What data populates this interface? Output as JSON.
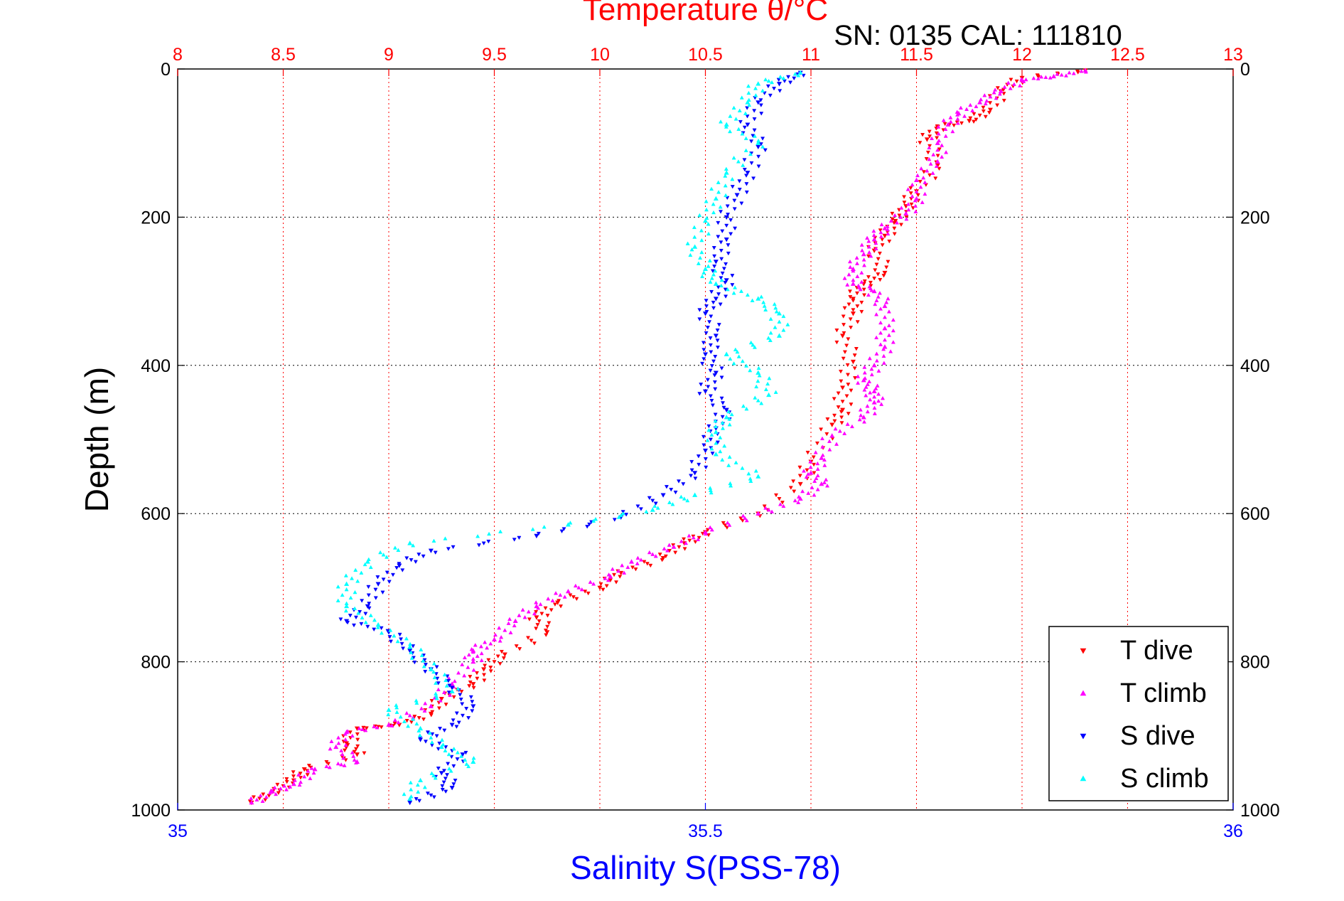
{
  "chart_data": {
    "type": "scatter",
    "title": "Temperature θ/°C",
    "subtitle": "SN: 0135  CAL: 111810",
    "xlabel": "Salinity S(PSS-78)",
    "ylabel": "Depth (m)",
    "grid": true,
    "legend_position": "bottom-right",
    "temperature_axis": {
      "position": "top",
      "color": "#ff0000",
      "range": [
        8,
        13
      ],
      "ticks": [
        8,
        8.5,
        9,
        9.5,
        10,
        10.5,
        11,
        11.5,
        12,
        12.5,
        13
      ],
      "tick_labels": [
        "8",
        "8.5",
        "9",
        "9.5",
        "10",
        "10.5",
        "11",
        "11.5",
        "12",
        "12.5",
        "13"
      ]
    },
    "salinity_axis": {
      "position": "bottom",
      "color": "#0000ff",
      "range": [
        35,
        36
      ],
      "ticks": [
        35,
        35.5,
        36
      ],
      "tick_labels": [
        "35",
        "35.5",
        "36"
      ]
    },
    "depth_axis": {
      "range": [
        0,
        1000
      ],
      "reversed": true,
      "ticks": [
        0,
        200,
        400,
        600,
        800,
        1000
      ],
      "tick_labels": [
        "0",
        "200",
        "400",
        "600",
        "800",
        "1000"
      ]
    },
    "series": [
      {
        "name": "T dive",
        "axis": "temperature",
        "color": "#ff0000",
        "marker": "triangle-down",
        "points": [
          [
            12.3,
            2
          ],
          [
            12.0,
            12
          ],
          [
            11.9,
            30
          ],
          [
            11.85,
            55
          ],
          [
            11.75,
            70
          ],
          [
            11.6,
            78
          ],
          [
            11.55,
            95
          ],
          [
            11.6,
            130
          ],
          [
            11.5,
            165
          ],
          [
            11.45,
            185
          ],
          [
            11.4,
            205
          ],
          [
            11.35,
            225
          ],
          [
            11.3,
            245
          ],
          [
            11.35,
            275
          ],
          [
            11.25,
            290
          ],
          [
            11.2,
            310
          ],
          [
            11.2,
            330
          ],
          [
            11.15,
            360
          ],
          [
            11.2,
            395
          ],
          [
            11.15,
            430
          ],
          [
            11.15,
            460
          ],
          [
            11.1,
            480
          ],
          [
            11.0,
            530
          ],
          [
            10.95,
            560
          ],
          [
            10.75,
            600
          ],
          [
            10.5,
            625
          ],
          [
            10.4,
            640
          ],
          [
            10.3,
            660
          ],
          [
            10.1,
            680
          ],
          [
            10.0,
            700
          ],
          [
            9.8,
            720
          ],
          [
            9.7,
            740
          ],
          [
            9.75,
            760
          ],
          [
            9.55,
            790
          ],
          [
            9.45,
            810
          ],
          [
            9.4,
            830
          ],
          [
            9.25,
            850
          ],
          [
            9.2,
            870
          ],
          [
            9.05,
            885
          ],
          [
            8.85,
            890
          ],
          [
            8.8,
            910
          ],
          [
            8.85,
            925
          ],
          [
            8.6,
            945
          ],
          [
            8.55,
            960
          ],
          [
            8.45,
            975
          ],
          [
            8.35,
            990
          ]
        ]
      },
      {
        "name": "T climb",
        "axis": "temperature",
        "color": "#ff00ff",
        "marker": "triangle-up",
        "points": [
          [
            12.3,
            2
          ],
          [
            12.15,
            10
          ],
          [
            12.0,
            15
          ],
          [
            11.9,
            30
          ],
          [
            11.8,
            45
          ],
          [
            11.7,
            60
          ],
          [
            11.65,
            75
          ],
          [
            11.6,
            100
          ],
          [
            11.6,
            125
          ],
          [
            11.5,
            150
          ],
          [
            11.5,
            175
          ],
          [
            11.45,
            195
          ],
          [
            11.35,
            215
          ],
          [
            11.3,
            230
          ],
          [
            11.25,
            250
          ],
          [
            11.2,
            270
          ],
          [
            11.2,
            290
          ],
          [
            11.3,
            300
          ],
          [
            11.35,
            320
          ],
          [
            11.35,
            350
          ],
          [
            11.35,
            375
          ],
          [
            11.3,
            400
          ],
          [
            11.25,
            420
          ],
          [
            11.3,
            435
          ],
          [
            11.3,
            450
          ],
          [
            11.25,
            470
          ],
          [
            11.1,
            495
          ],
          [
            11.05,
            525
          ],
          [
            11.0,
            545
          ],
          [
            11.05,
            560
          ],
          [
            10.95,
            580
          ],
          [
            10.75,
            600
          ],
          [
            10.5,
            625
          ],
          [
            10.35,
            645
          ],
          [
            10.15,
            665
          ],
          [
            10.05,
            685
          ],
          [
            9.85,
            705
          ],
          [
            9.7,
            725
          ],
          [
            9.6,
            745
          ],
          [
            9.5,
            770
          ],
          [
            9.4,
            785
          ],
          [
            9.4,
            800
          ],
          [
            9.3,
            830
          ],
          [
            9.2,
            860
          ],
          [
            9.0,
            885
          ],
          [
            8.8,
            895
          ],
          [
            8.75,
            915
          ],
          [
            8.85,
            935
          ],
          [
            8.65,
            945
          ],
          [
            8.55,
            965
          ],
          [
            8.45,
            975
          ],
          [
            8.35,
            990
          ]
        ]
      },
      {
        "name": "S dive",
        "axis": "salinity",
        "color": "#0000ff",
        "marker": "triangle-down",
        "points": [
          [
            35.59,
            5
          ],
          [
            35.57,
            20
          ],
          [
            35.55,
            45
          ],
          [
            35.54,
            75
          ],
          [
            35.55,
            105
          ],
          [
            35.54,
            140
          ],
          [
            35.53,
            170
          ],
          [
            35.52,
            200
          ],
          [
            35.52,
            230
          ],
          [
            35.51,
            260
          ],
          [
            35.52,
            285
          ],
          [
            35.51,
            310
          ],
          [
            35.5,
            330
          ],
          [
            35.51,
            360
          ],
          [
            35.5,
            385
          ],
          [
            35.51,
            410
          ],
          [
            35.5,
            435
          ],
          [
            35.52,
            460
          ],
          [
            35.51,
            485
          ],
          [
            35.5,
            515
          ],
          [
            35.49,
            545
          ],
          [
            35.46,
            575
          ],
          [
            35.42,
            605
          ],
          [
            35.34,
            630
          ],
          [
            35.24,
            650
          ],
          [
            35.21,
            670
          ],
          [
            35.19,
            695
          ],
          [
            35.18,
            725
          ],
          [
            35.16,
            745
          ],
          [
            35.2,
            760
          ],
          [
            35.22,
            785
          ],
          [
            35.24,
            810
          ],
          [
            35.26,
            835
          ],
          [
            35.28,
            860
          ],
          [
            35.26,
            885
          ],
          [
            35.23,
            905
          ],
          [
            35.27,
            925
          ],
          [
            35.25,
            950
          ],
          [
            35.26,
            970
          ],
          [
            35.22,
            990
          ]
        ]
      },
      {
        "name": "S climb",
        "axis": "salinity",
        "color": "#00ffff",
        "marker": "triangle-up",
        "points": [
          [
            35.59,
            5
          ],
          [
            35.55,
            20
          ],
          [
            35.54,
            45
          ],
          [
            35.52,
            75
          ],
          [
            35.55,
            100
          ],
          [
            35.52,
            140
          ],
          [
            35.51,
            175
          ],
          [
            35.5,
            205
          ],
          [
            35.49,
            240
          ],
          [
            35.5,
            270
          ],
          [
            35.51,
            290
          ],
          [
            35.55,
            310
          ],
          [
            35.57,
            330
          ],
          [
            35.57,
            360
          ],
          [
            35.52,
            385
          ],
          [
            35.55,
            410
          ],
          [
            35.56,
            440
          ],
          [
            35.52,
            470
          ],
          [
            35.51,
            490
          ],
          [
            35.51,
            520
          ],
          [
            35.55,
            550
          ],
          [
            35.49,
            575
          ],
          [
            35.45,
            595
          ],
          [
            35.37,
            615
          ],
          [
            35.22,
            640
          ],
          [
            35.18,
            665
          ],
          [
            35.16,
            695
          ],
          [
            35.16,
            725
          ],
          [
            35.19,
            750
          ],
          [
            35.22,
            780
          ],
          [
            35.24,
            810
          ],
          [
            35.26,
            840
          ],
          [
            35.2,
            865
          ],
          [
            35.23,
            890
          ],
          [
            35.25,
            915
          ],
          [
            35.28,
            935
          ],
          [
            35.23,
            960
          ],
          [
            35.22,
            985
          ]
        ]
      }
    ]
  }
}
